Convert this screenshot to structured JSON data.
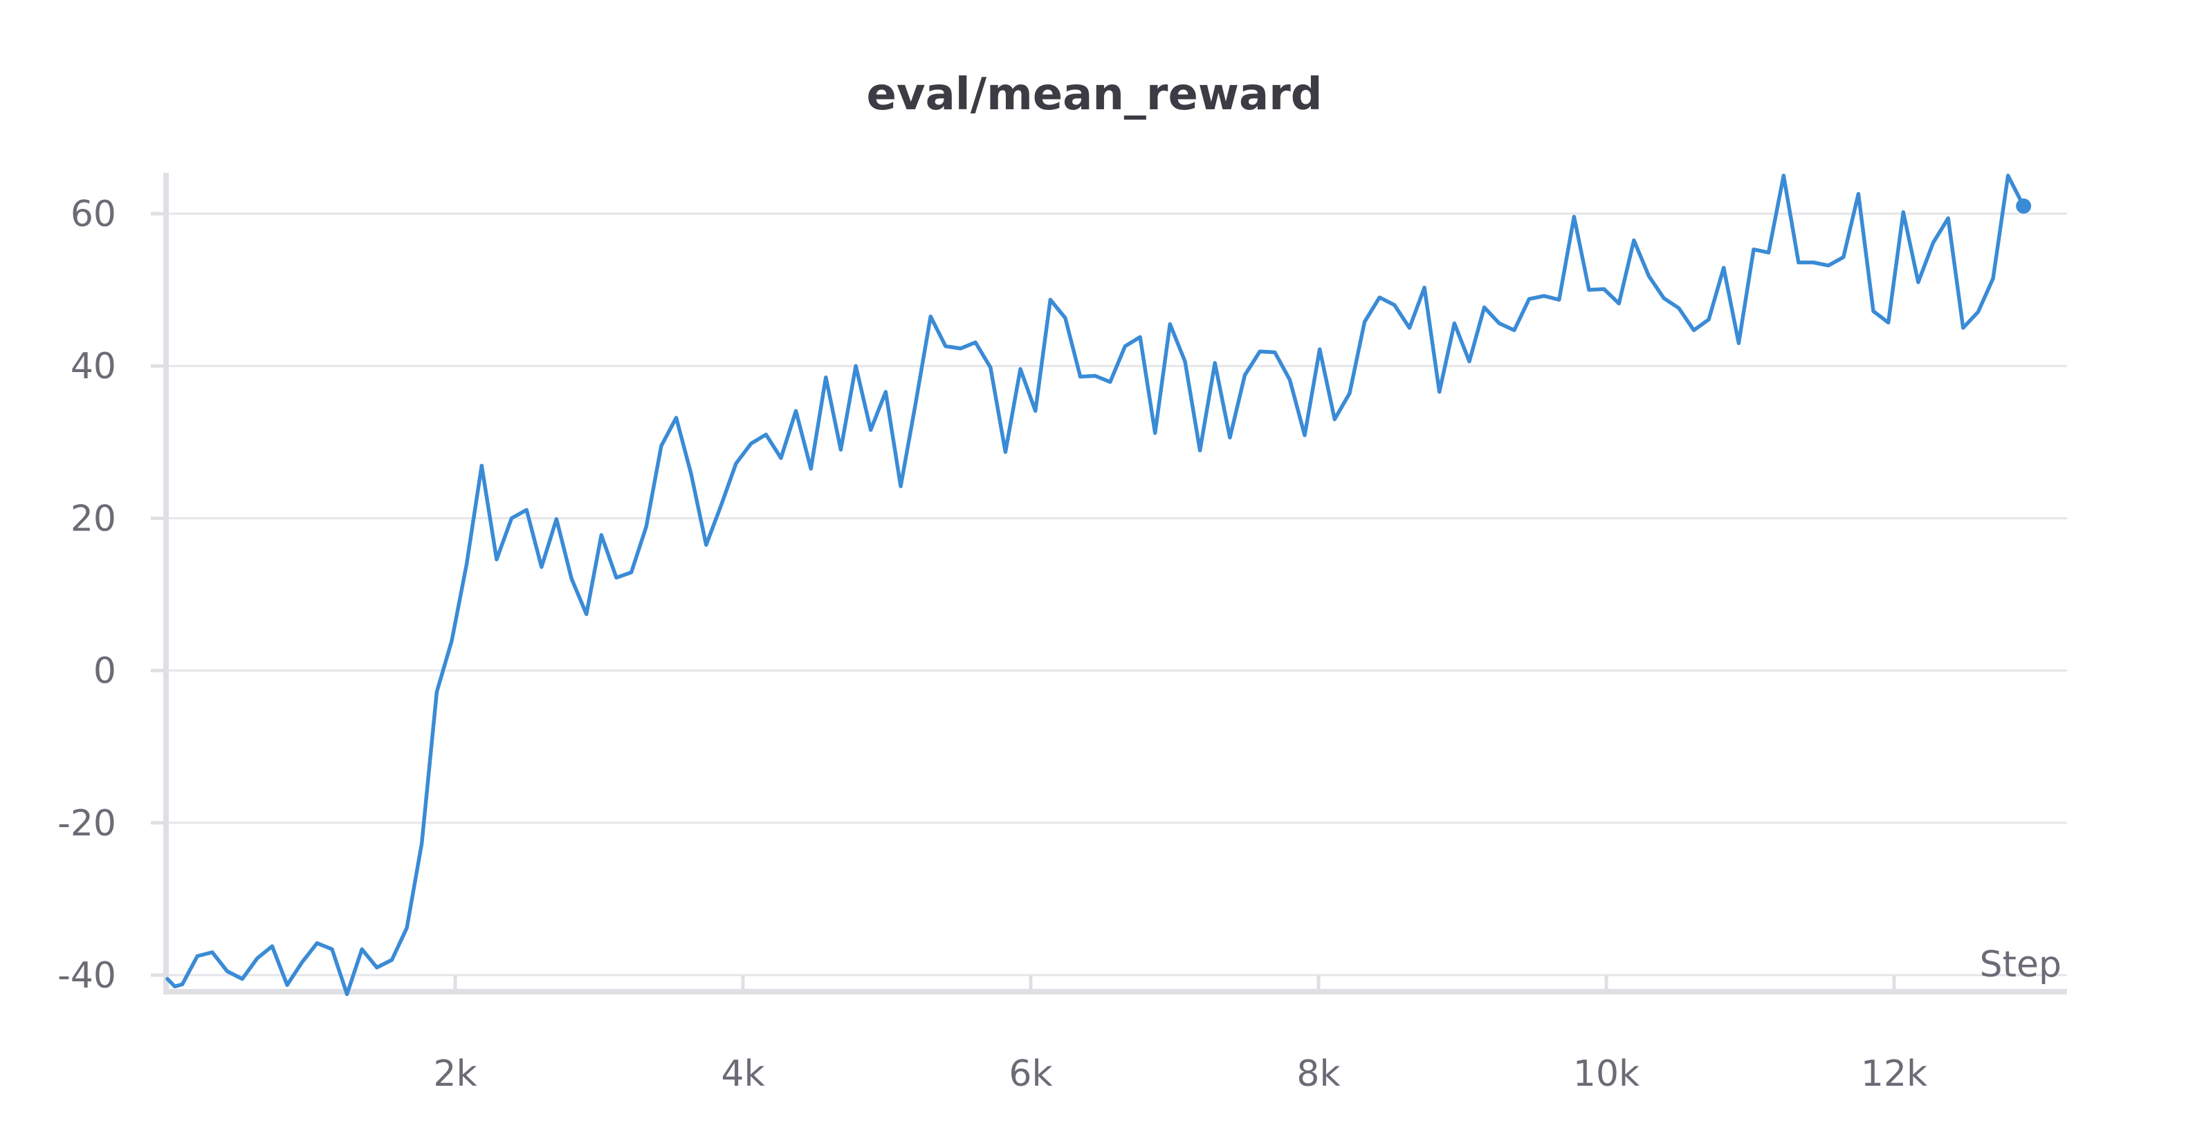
{
  "chart_data": {
    "type": "line",
    "title": "eval/mean_reward",
    "xlabel": "Step",
    "ylabel": "",
    "xlim": [
      0,
      12900
    ],
    "ylim": [
      -42,
      63
    ],
    "x_ticks": [
      {
        "value": 2000,
        "label": "2k"
      },
      {
        "value": 4000,
        "label": "4k"
      },
      {
        "value": 6000,
        "label": "6k"
      },
      {
        "value": 8000,
        "label": "8k"
      },
      {
        "value": 10000,
        "label": "10k"
      },
      {
        "value": 12000,
        "label": "12k"
      }
    ],
    "y_ticks": [
      {
        "value": 60,
        "label": "60"
      },
      {
        "value": 40,
        "label": "40"
      },
      {
        "value": 20,
        "label": "20"
      },
      {
        "value": 0,
        "label": "0"
      },
      {
        "value": -20,
        "label": "-20"
      },
      {
        "value": -40,
        "label": "-40"
      }
    ],
    "grid": true,
    "line_color": "#3a8bd6",
    "series": [
      {
        "color": "#3a8bd6",
        "x": [
          0,
          52,
          104,
          208,
          312,
          416,
          520,
          624,
          728,
          832,
          936,
          1040,
          1144,
          1248,
          1352,
          1456,
          1560,
          1664,
          1768,
          1872,
          1976,
          2080,
          2184,
          2288,
          2392,
          2496,
          2600,
          2704,
          2808,
          2912,
          3016,
          3120,
          3224,
          3328,
          3432,
          3536,
          3640,
          3744,
          3848,
          3952,
          4056,
          4160,
          4264,
          4368,
          4472,
          4576,
          4680,
          4784,
          4888,
          4992,
          5096,
          5200,
          5304,
          5408,
          5512,
          5616,
          5720,
          5824,
          5928,
          6032,
          6136,
          6240,
          6344,
          6448,
          6552,
          6656,
          6760,
          6864,
          6968,
          7072,
          7176,
          7280,
          7384,
          7488,
          7592,
          7696,
          7800,
          7904,
          8008,
          8112,
          8216,
          8320,
          8424,
          8528,
          8632,
          8736,
          8840,
          8944,
          9048,
          9152,
          9256,
          9360,
          9464,
          9568,
          9672,
          9776,
          9880,
          9984,
          10088,
          10192,
          10296,
          10400,
          10504,
          10608,
          10712,
          10816,
          10920,
          11024,
          11128,
          11232,
          11336,
          11440,
          11544,
          11648,
          11752,
          11856,
          11960,
          12064,
          12168,
          12272,
          12376,
          12480,
          12584,
          12688,
          12792,
          12900
        ],
        "y": [
          -40.5,
          -41.5,
          -41.2,
          -37.5,
          -37.0,
          -39.5,
          -40.5,
          -37.8,
          -36.2,
          -41.3,
          -38.3,
          -35.8,
          -36.6,
          -42.5,
          -36.6,
          -39.0,
          -38.0,
          -33.8,
          -22.7,
          -2.8,
          3.9,
          14.0,
          26.9,
          14.6,
          20.0,
          21.1,
          13.6,
          19.9,
          12.1,
          7.4,
          17.8,
          12.2,
          12.9,
          18.9,
          29.5,
          33.2,
          25.8,
          16.5,
          21.7,
          27.2,
          29.8,
          31.0,
          27.9,
          34.1,
          26.5,
          38.5,
          29.0,
          40.0,
          31.6,
          36.6,
          24.2,
          35.1,
          46.5,
          42.6,
          42.3,
          43.1,
          39.8,
          28.7,
          39.6,
          34.1,
          48.7,
          46.3,
          38.6,
          38.7,
          37.9,
          42.6,
          43.8,
          31.2,
          45.5,
          40.6,
          28.9,
          40.4,
          30.6,
          38.8,
          41.9,
          41.8,
          38.2,
          30.9,
          42.2,
          33.0,
          36.4,
          45.8,
          49.0,
          48.0,
          45.0,
          50.3,
          36.6,
          45.6,
          40.6,
          47.7,
          45.6,
          44.7,
          48.8,
          49.2,
          48.7,
          59.6,
          50.0,
          50.1,
          48.2,
          56.5,
          51.8,
          48.9,
          47.6,
          44.7,
          46.1,
          52.9,
          43.0,
          55.3,
          54.9,
          65.0,
          53.6,
          53.6,
          53.2,
          54.3,
          62.6,
          47.2,
          45.7,
          60.2,
          51.0,
          56.2,
          59.4,
          45.0,
          47.1,
          51.5,
          65.0,
          61.0
        ]
      }
    ]
  }
}
